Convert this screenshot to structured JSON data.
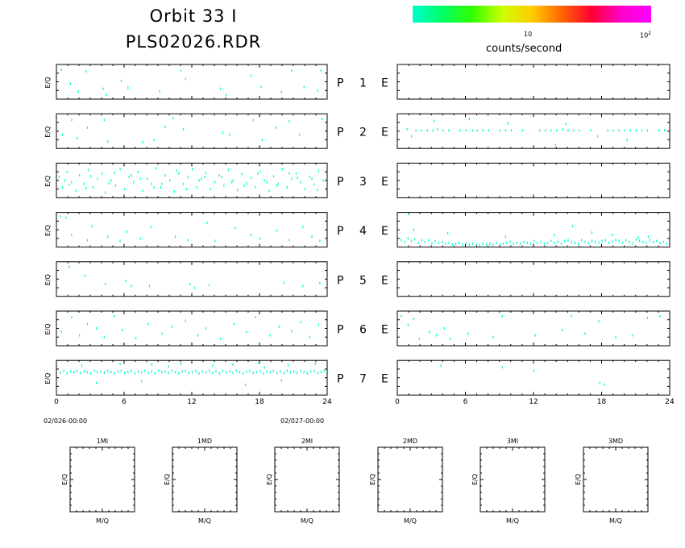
{
  "header": {
    "title_line1": "Orbit 33 I",
    "title_line2": "PLS02026.RDR"
  },
  "colorbar": {
    "colors": [
      "#00ffcc",
      "#00ff66",
      "#33ff00",
      "#ccff00",
      "#ffcc00",
      "#ff6600",
      "#ff0033",
      "#ff00cc",
      "#ff00ff"
    ],
    "tick_10": "10",
    "tick_100_base": "10",
    "tick_100_exp": "2",
    "label": "counts/second"
  },
  "rows": [
    {
      "prefix": "P",
      "num": "1",
      "suffix": "E"
    },
    {
      "prefix": "P",
      "num": "2",
      "suffix": "E"
    },
    {
      "prefix": "P",
      "num": "3",
      "suffix": "E"
    },
    {
      "prefix": "P",
      "num": "4",
      "suffix": "E"
    },
    {
      "prefix": "P",
      "num": "5",
      "suffix": "E"
    },
    {
      "prefix": "P",
      "num": "6",
      "suffix": "E"
    },
    {
      "prefix": "P",
      "num": "7",
      "suffix": "E"
    }
  ],
  "panel_ylabel": "E/Q",
  "x_ticks": [
    "0",
    "6",
    "12",
    "18",
    "24"
  ],
  "date_start": "02/026-00:00",
  "date_end": "02/027-00:00",
  "bottom_panels": [
    {
      "title": "1MI",
      "xlabel": "M/Q",
      "ylabel": "E/Q"
    },
    {
      "title": "1MD",
      "xlabel": "M/Q",
      "ylabel": "E/Q"
    },
    {
      "title": "2MI",
      "xlabel": "M/Q",
      "ylabel": "E/Q"
    },
    {
      "title": "2MD",
      "xlabel": "M/Q",
      "ylabel": "E/Q"
    },
    {
      "title": "3MI",
      "xlabel": "M/Q",
      "ylabel": "E/Q"
    },
    {
      "title": "3MD",
      "xlabel": "M/Q",
      "ylabel": "E/Q"
    }
  ],
  "chart_data": {
    "type": "scatter",
    "x_range": [
      0,
      24
    ],
    "marker_color": "#00ffcc",
    "series": [
      {
        "name": "P 1",
        "x": [
          0.4,
          1.2,
          1.9,
          2.6,
          4.1,
          4.4,
          5.7,
          6.3,
          9.1,
          11.0,
          11.4,
          14.5,
          15.0,
          17.2,
          18.1,
          19.9,
          20.8,
          21.9,
          23.1,
          23.4
        ],
        "y": [
          0.85,
          0.45,
          0.22,
          0.8,
          0.3,
          0.12,
          0.52,
          0.32,
          0.22,
          0.82,
          0.58,
          0.3,
          0.12,
          0.68,
          0.35,
          0.2,
          0.82,
          0.35,
          0.25,
          0.82
        ]
      },
      {
        "name": "E 1",
        "x": [],
        "y": []
      },
      {
        "name": "P 2",
        "x": [
          0.5,
          1.3,
          1.8,
          2.7,
          4.2,
          4.5,
          7.6,
          8.6,
          9.6,
          10.3,
          11.2,
          14.7,
          15.3,
          17.4,
          18.2,
          19.4,
          20.6,
          21.5,
          23.5
        ],
        "y": [
          0.4,
          0.82,
          0.3,
          0.6,
          0.82,
          0.2,
          0.18,
          0.25,
          0.62,
          0.88,
          0.55,
          0.45,
          0.4,
          0.82,
          0.25,
          0.6,
          0.78,
          0.4,
          0.85
        ]
      },
      {
        "name": "E 2",
        "x": [
          0.8,
          1.2,
          1.6,
          2.1,
          2.6,
          3.1,
          3.5,
          4.0,
          4.5,
          5.5,
          6.0,
          6.6,
          7.0,
          7.5,
          8.0,
          9.0,
          9.5,
          10.0,
          11.0,
          12.5,
          13.0,
          13.5,
          14.0,
          14.5,
          15.0,
          15.5,
          16.0,
          17.0,
          18.5,
          19.0,
          19.5,
          20.0,
          20.5,
          21.0,
          21.5,
          22.0,
          23.0,
          23.5,
          6.3,
          3.2,
          9.7,
          14.8,
          17.6,
          20.2,
          13.9
        ],
        "y": [
          0.55,
          0.35,
          0.52,
          0.52,
          0.52,
          0.52,
          0.55,
          0.52,
          0.52,
          0.52,
          0.52,
          0.52,
          0.52,
          0.52,
          0.52,
          0.52,
          0.52,
          0.52,
          0.52,
          0.52,
          0.52,
          0.52,
          0.52,
          0.55,
          0.52,
          0.52,
          0.52,
          0.52,
          0.52,
          0.52,
          0.52,
          0.52,
          0.52,
          0.52,
          0.52,
          0.52,
          0.52,
          0.52,
          0.85,
          0.8,
          0.72,
          0.7,
          0.35,
          0.25,
          0.1
        ]
      },
      {
        "name": "P 3",
        "x": [
          0.2,
          0.5,
          0.9,
          1.3,
          1.7,
          2.0,
          2.4,
          2.8,
          3.2,
          3.6,
          4.0,
          4.3,
          4.8,
          5.2,
          5.6,
          6.0,
          6.4,
          6.8,
          7.2,
          7.6,
          8.0,
          8.4,
          8.8,
          9.2,
          9.6,
          10.0,
          10.4,
          10.8,
          11.2,
          11.6,
          12.0,
          12.4,
          12.8,
          13.2,
          13.6,
          14.0,
          14.4,
          14.8,
          15.2,
          15.6,
          16.0,
          16.4,
          16.8,
          17.2,
          17.6,
          18.0,
          18.4,
          18.8,
          19.2,
          19.6,
          20.0,
          20.4,
          20.8,
          21.2,
          21.6,
          22.0,
          22.4,
          22.8,
          23.2,
          23.6,
          1.1,
          3.0,
          5.1,
          7.4,
          9.3,
          11.5,
          13.1,
          15.5,
          17.8,
          19.5,
          21.3,
          23.1,
          0.7,
          2.6,
          4.6,
          6.6,
          8.6,
          10.6,
          12.6,
          14.6,
          16.6,
          18.6,
          20.6,
          22.6
        ],
        "y": [
          0.6,
          0.3,
          0.75,
          0.45,
          0.2,
          0.65,
          0.4,
          0.8,
          0.3,
          0.55,
          0.7,
          0.15,
          0.5,
          0.35,
          0.82,
          0.25,
          0.6,
          0.45,
          0.75,
          0.2,
          0.55,
          0.4,
          0.85,
          0.3,
          0.65,
          0.5,
          0.18,
          0.7,
          0.4,
          0.6,
          0.82,
          0.3,
          0.55,
          0.72,
          0.25,
          0.45,
          0.65,
          0.35,
          0.8,
          0.5,
          0.22,
          0.68,
          0.42,
          0.58,
          0.3,
          0.75,
          0.5,
          0.2,
          0.62,
          0.4,
          0.82,
          0.3,
          0.55,
          0.7,
          0.45,
          0.25,
          0.6,
          0.38,
          0.78,
          0.5,
          0.38,
          0.62,
          0.72,
          0.55,
          0.4,
          0.25,
          0.6,
          0.45,
          0.7,
          0.35,
          0.58,
          0.22,
          0.5,
          0.28,
          0.42,
          0.65,
          0.3,
          0.78,
          0.5,
          0.6,
          0.35,
          0.45,
          0.7,
          0.55
        ]
      },
      {
        "name": "E 3",
        "x": [],
        "y": []
      },
      {
        "name": "P 4",
        "x": [
          0.3,
          0.8,
          1.3,
          2.7,
          3.1,
          4.5,
          5.6,
          6.2,
          7.4,
          8.3,
          10.5,
          11.6,
          13.3,
          14.0,
          15.8,
          17.2,
          18.0,
          19.5,
          20.6,
          21.8,
          22.6,
          23.3
        ],
        "y": [
          0.88,
          0.85,
          0.35,
          0.2,
          0.6,
          0.3,
          0.18,
          0.45,
          0.25,
          0.58,
          0.3,
          0.2,
          0.7,
          0.18,
          0.55,
          0.35,
          0.25,
          0.48,
          0.2,
          0.58,
          0.3,
          0.18
        ]
      },
      {
        "name": "E 4",
        "x": [
          0.3,
          0.6,
          0.9,
          1.2,
          1.5,
          1.8,
          2.1,
          2.4,
          2.7,
          3.0,
          3.3,
          3.6,
          3.9,
          4.2,
          4.5,
          4.8,
          5.1,
          5.4,
          5.7,
          6.0,
          6.3,
          6.6,
          6.9,
          7.2,
          7.5,
          7.8,
          8.1,
          8.4,
          8.7,
          9.0,
          9.3,
          9.6,
          9.9,
          10.2,
          10.5,
          10.8,
          11.1,
          11.4,
          11.7,
          12.0,
          12.3,
          12.6,
          12.9,
          13.2,
          13.5,
          13.8,
          14.1,
          14.4,
          14.7,
          15.0,
          15.3,
          15.6,
          15.9,
          16.2,
          16.5,
          16.8,
          17.1,
          17.4,
          17.7,
          18.0,
          18.3,
          18.6,
          18.9,
          19.2,
          19.5,
          19.8,
          20.1,
          20.4,
          20.7,
          21.0,
          21.3,
          21.6,
          21.9,
          22.2,
          22.5,
          22.8,
          23.1,
          23.4,
          23.7,
          1.4,
          4.4,
          9.5,
          13.8,
          15.4,
          17.1,
          18.9,
          21.2,
          22.1,
          1.0
        ],
        "y": [
          0.2,
          0.15,
          0.25,
          0.18,
          0.22,
          0.12,
          0.2,
          0.15,
          0.2,
          0.1,
          0.18,
          0.12,
          0.15,
          0.1,
          0.12,
          0.08,
          0.1,
          0.12,
          0.08,
          0.1,
          0.06,
          0.1,
          0.08,
          0.05,
          0.1,
          0.08,
          0.1,
          0.06,
          0.12,
          0.08,
          0.1,
          0.12,
          0.15,
          0.1,
          0.12,
          0.1,
          0.15,
          0.12,
          0.1,
          0.18,
          0.12,
          0.15,
          0.1,
          0.12,
          0.18,
          0.12,
          0.15,
          0.1,
          0.18,
          0.2,
          0.15,
          0.12,
          0.1,
          0.2,
          0.15,
          0.12,
          0.18,
          0.15,
          0.12,
          0.18,
          0.2,
          0.12,
          0.15,
          0.2,
          0.18,
          0.12,
          0.2,
          0.15,
          0.1,
          0.22,
          0.18,
          0.15,
          0.12,
          0.2,
          0.15,
          0.18,
          0.12,
          0.15,
          0.1,
          0.5,
          0.4,
          0.3,
          0.35,
          0.6,
          0.42,
          0.35,
          0.28,
          0.3,
          0.95
        ]
      },
      {
        "name": "P 5",
        "x": [
          1.1,
          2.5,
          4.3,
          6.1,
          6.6,
          8.2,
          11.8,
          12.2,
          13.5,
          20.1,
          21.8,
          23.3
        ],
        "y": [
          0.85,
          0.6,
          0.35,
          0.45,
          0.3,
          0.3,
          0.35,
          0.25,
          0.32,
          0.4,
          0.3,
          0.38
        ]
      },
      {
        "name": "E 5",
        "x": [],
        "y": []
      },
      {
        "name": "P 6",
        "x": [
          0.4,
          1.3,
          2.0,
          2.7,
          3.5,
          4.2,
          5.1,
          5.8,
          7.0,
          8.1,
          9.3,
          10.2,
          11.4,
          12.5,
          13.2,
          14.5,
          15.7,
          16.8,
          17.6,
          18.9,
          19.7,
          20.8,
          21.6,
          22.4,
          23.2
        ],
        "y": [
          0.4,
          0.82,
          0.3,
          0.62,
          0.5,
          0.25,
          0.85,
          0.45,
          0.22,
          0.62,
          0.35,
          0.55,
          0.72,
          0.3,
          0.5,
          0.2,
          0.62,
          0.4,
          0.82,
          0.3,
          0.55,
          0.42,
          0.68,
          0.25,
          0.6
        ]
      },
      {
        "name": "E 6",
        "x": [
          0.3,
          0.9,
          1.4,
          1.9,
          2.8,
          3.4,
          4.1,
          4.6,
          6.2,
          8.4,
          9.2,
          12.1,
          14.5,
          15.3,
          16.5,
          17.7,
          19.2,
          20.7,
          22.0,
          23.1
        ],
        "y": [
          0.85,
          0.6,
          0.78,
          0.2,
          0.4,
          0.3,
          0.5,
          0.2,
          0.35,
          0.25,
          0.85,
          0.3,
          0.45,
          0.85,
          0.35,
          0.7,
          0.25,
          0.3,
          0.8,
          0.85
        ]
      },
      {
        "name": "P 7",
        "x": [
          0.3,
          0.6,
          0.9,
          1.2,
          1.5,
          1.8,
          2.1,
          2.4,
          2.7,
          3.0,
          3.3,
          3.6,
          3.9,
          4.2,
          4.5,
          4.8,
          5.1,
          5.4,
          5.7,
          6.0,
          6.3,
          6.6,
          6.9,
          7.2,
          7.5,
          7.8,
          8.1,
          8.4,
          8.7,
          9.0,
          9.3,
          9.6,
          9.9,
          10.2,
          10.5,
          10.8,
          11.1,
          11.4,
          11.7,
          12.0,
          12.3,
          12.6,
          12.9,
          13.2,
          13.5,
          13.8,
          14.1,
          14.4,
          14.7,
          15.0,
          15.3,
          15.6,
          15.9,
          16.2,
          16.5,
          16.8,
          17.1,
          17.4,
          17.7,
          18.0,
          18.3,
          18.6,
          18.9,
          19.2,
          19.5,
          19.8,
          20.1,
          20.4,
          20.7,
          21.0,
          21.3,
          21.6,
          21.9,
          22.2,
          22.5,
          22.8,
          23.1,
          23.4,
          23.7,
          2.2,
          5.6,
          8.4,
          9.9,
          11.0,
          13.8,
          15.6,
          17.9,
          18.4,
          20.5,
          22.9,
          3.5,
          7.5,
          16.7,
          19.9
        ],
        "y": [
          0.65,
          0.7,
          0.62,
          0.68,
          0.66,
          0.7,
          0.64,
          0.68,
          0.66,
          0.62,
          0.7,
          0.66,
          0.68,
          0.64,
          0.7,
          0.66,
          0.62,
          0.68,
          0.7,
          0.64,
          0.66,
          0.7,
          0.62,
          0.68,
          0.66,
          0.7,
          0.64,
          0.68,
          0.62,
          0.7,
          0.66,
          0.68,
          0.64,
          0.7,
          0.66,
          0.62,
          0.68,
          0.7,
          0.64,
          0.66,
          0.7,
          0.62,
          0.68,
          0.66,
          0.7,
          0.64,
          0.68,
          0.62,
          0.7,
          0.66,
          0.68,
          0.64,
          0.7,
          0.66,
          0.62,
          0.68,
          0.7,
          0.64,
          0.66,
          0.7,
          0.62,
          0.68,
          0.66,
          0.7,
          0.64,
          0.68,
          0.62,
          0.7,
          0.66,
          0.68,
          0.64,
          0.7,
          0.66,
          0.62,
          0.68,
          0.7,
          0.64,
          0.66,
          0.7,
          0.85,
          0.9,
          0.88,
          0.82,
          0.9,
          0.85,
          0.88,
          0.92,
          0.8,
          0.86,
          0.9,
          0.35,
          0.4,
          0.3,
          0.42
        ]
      },
      {
        "name": "E 7",
        "x": [
          3.8,
          9.2,
          12.0,
          17.8,
          18.2
        ],
        "y": [
          0.85,
          0.8,
          0.7,
          0.35,
          0.3
        ]
      }
    ]
  }
}
